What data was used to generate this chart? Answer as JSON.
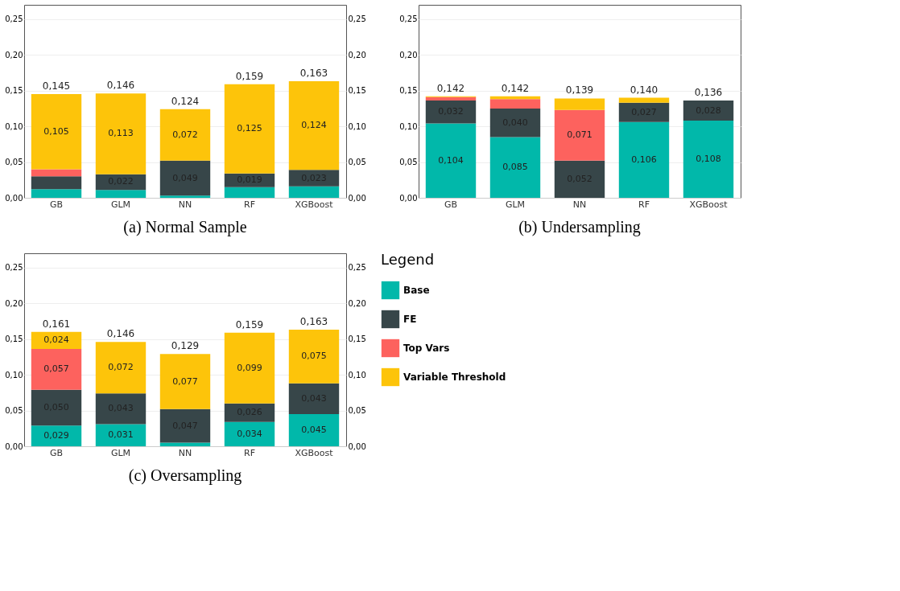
{
  "chart_data": [
    {
      "type": "bar",
      "stacked": true,
      "title": "(a) Normal Sample",
      "categories": [
        "GB",
        "GLM",
        "NN",
        "RF",
        "XGBoost"
      ],
      "legend": false,
      "grid": "y",
      "ylim": [
        0,
        0.27
      ],
      "yticks": [
        {
          "value": 0,
          "label": "0,00"
        },
        {
          "value": 0.05,
          "label": "0,05"
        },
        {
          "value": 0.1,
          "label": "0,10"
        },
        {
          "value": 0.15,
          "label": "0,15"
        },
        {
          "value": 0.2,
          "label": "0,20"
        },
        {
          "value": 0.25,
          "label": "0,25"
        }
      ],
      "y2lim": [
        0,
        0.27
      ],
      "y2ticks": [
        {
          "value": 0,
          "label": "0,00"
        },
        {
          "value": 0.05,
          "label": "0,05"
        },
        {
          "value": 0.1,
          "label": "0,10"
        },
        {
          "value": 0.15,
          "label": "0,15"
        },
        {
          "value": 0.2,
          "label": "0,20"
        },
        {
          "value": 0.25,
          "label": "0,25"
        }
      ],
      "series": [
        {
          "color": "#01b8aa",
          "values": [
            0.012,
            0.011,
            0.003,
            0.015,
            0.016
          ],
          "value_labels": [
            null,
            null,
            null,
            null,
            null
          ]
        },
        {
          "color": "#374649",
          "values": [
            0.018,
            0.022,
            0.049,
            0.019,
            0.023
          ],
          "value_labels": [
            null,
            "0,022",
            "0,049",
            "0,019",
            "0,023"
          ]
        },
        {
          "color": "#fd625e",
          "values": [
            0.01,
            0,
            0,
            0,
            0
          ],
          "value_labels": [
            null,
            null,
            null,
            null,
            null
          ]
        },
        {
          "color": "#fdc40a",
          "values": [
            0.105,
            0.113,
            0.072,
            0.125,
            0.124
          ],
          "value_labels": [
            "0,105",
            "0,113",
            "0,072",
            "0,125",
            "0,124"
          ]
        }
      ],
      "totals": [
        "0,145",
        "0,146",
        "0,124",
        "0,159",
        "0,163"
      ]
    },
    {
      "type": "bar",
      "stacked": true,
      "title": "(b) Undersampling",
      "categories": [
        "GB",
        "GLM",
        "NN",
        "RF",
        "XGBoost"
      ],
      "legend": false,
      "grid": "y",
      "ylim": [
        0,
        0.27
      ],
      "yticks": [
        {
          "value": 0,
          "label": "0,00"
        },
        {
          "value": 0.05,
          "label": "0,05"
        },
        {
          "value": 0.1,
          "label": "0,10"
        },
        {
          "value": 0.15,
          "label": "0,15"
        },
        {
          "value": 0.2,
          "label": "0,20"
        },
        {
          "value": 0.25,
          "label": "0,25"
        }
      ],
      "series": [
        {
          "color": "#01b8aa",
          "values": [
            0.104,
            0.085,
            0,
            0.106,
            0.108
          ],
          "value_labels": [
            "0,104",
            "0,085",
            null,
            "0,106",
            "0,108"
          ]
        },
        {
          "color": "#374649",
          "values": [
            0.032,
            0.04,
            0.052,
            0.027,
            0.028
          ],
          "value_labels": [
            "0,032",
            "0,040",
            "0,052",
            "0,027",
            "0,028"
          ]
        },
        {
          "color": "#fd625e",
          "values": [
            0.005,
            0.013,
            0.071,
            0,
            0
          ],
          "value_labels": [
            null,
            null,
            "0,071",
            null,
            null
          ]
        },
        {
          "color": "#fdc40a",
          "values": [
            0.001,
            0.004,
            0.016,
            0.007,
            0
          ],
          "value_labels": [
            null,
            null,
            null,
            null,
            null
          ]
        }
      ],
      "totals": [
        "0,142",
        "0,142",
        "0,139",
        "0,140",
        "0,136"
      ]
    },
    {
      "type": "bar",
      "stacked": true,
      "title": "(c) Oversampling",
      "categories": [
        "GB",
        "GLM",
        "NN",
        "RF",
        "XGBoost"
      ],
      "legend": "right",
      "legend_title": "Legend",
      "grid": "y",
      "ylim": [
        0,
        0.27
      ],
      "yticks": [
        {
          "value": 0,
          "label": "0,00"
        },
        {
          "value": 0.05,
          "label": "0,05"
        },
        {
          "value": 0.1,
          "label": "0,10"
        },
        {
          "value": 0.15,
          "label": "0,15"
        },
        {
          "value": 0.2,
          "label": "0,20"
        },
        {
          "value": 0.25,
          "label": "0,25"
        }
      ],
      "y2lim": [
        0,
        0.27
      ],
      "y2ticks": [
        {
          "value": 0,
          "label": "0,00"
        },
        {
          "value": 0.05,
          "label": "0,05"
        },
        {
          "value": 0.1,
          "label": "0,10"
        },
        {
          "value": 0.15,
          "label": "0,15"
        },
        {
          "value": 0.2,
          "label": "0,20"
        },
        {
          "value": 0.25,
          "label": "0,25"
        }
      ],
      "series": [
        {
          "name": "Base",
          "color": "#01b8aa",
          "values": [
            0.029,
            0.031,
            0.005,
            0.034,
            0.045
          ],
          "value_labels": [
            "0,029",
            "0,031",
            null,
            "0,034",
            "0,045"
          ]
        },
        {
          "name": "FE",
          "color": "#374649",
          "values": [
            0.05,
            0.043,
            0.047,
            0.026,
            0.043
          ],
          "value_labels": [
            "0,050",
            "0,043",
            "0,047",
            "0,026",
            "0,043"
          ]
        },
        {
          "name": "Top Vars",
          "color": "#fd625e",
          "values": [
            0.057,
            0,
            0,
            0,
            0
          ],
          "value_labels": [
            "0,057",
            null,
            null,
            null,
            null
          ]
        },
        {
          "name": "Variable Threshold",
          "color": "#fdc40a",
          "values": [
            0.024,
            0.072,
            0.077,
            0.099,
            0.075
          ],
          "value_labels": [
            "0,024",
            "0,072",
            "0,077",
            "0,099",
            "0,075"
          ]
        }
      ],
      "totals": [
        "0,161",
        "0,146",
        "0,129",
        "0,159",
        "0,163"
      ]
    }
  ]
}
